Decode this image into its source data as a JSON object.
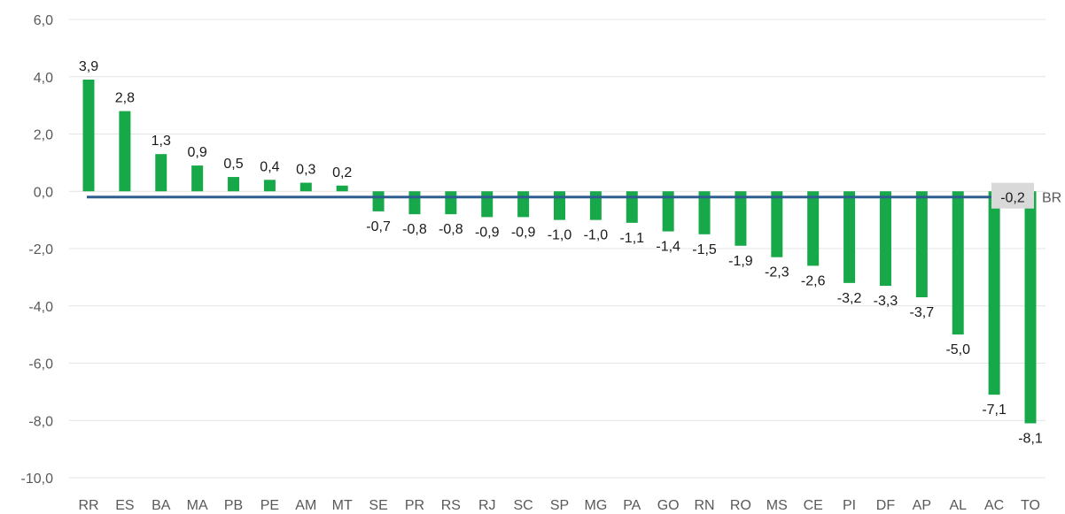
{
  "chart_data": {
    "type": "bar",
    "categories": [
      "RR",
      "ES",
      "BA",
      "MA",
      "PB",
      "PE",
      "AM",
      "MT",
      "SE",
      "PR",
      "RS",
      "RJ",
      "SC",
      "SP",
      "MG",
      "PA",
      "GO",
      "RN",
      "RO",
      "MS",
      "CE",
      "PI",
      "DF",
      "AP",
      "AL",
      "AC",
      "TO"
    ],
    "values": [
      3.9,
      2.8,
      1.3,
      0.9,
      0.5,
      0.4,
      0.3,
      0.2,
      -0.7,
      -0.8,
      -0.8,
      -0.9,
      -0.9,
      -1.0,
      -1.0,
      -1.1,
      -1.4,
      -1.5,
      -1.9,
      -2.3,
      -2.6,
      -3.2,
      -3.3,
      -3.7,
      -5.0,
      -7.1,
      -8.1
    ],
    "value_labels": [
      "3,9",
      "2,8",
      "1,3",
      "0,9",
      "0,5",
      "0,4",
      "0,3",
      "0,2",
      "-0,7",
      "-0,8",
      "-0,8",
      "-0,9",
      "-0,9",
      "-1,0",
      "-1,0",
      "-1,1",
      "-1,4",
      "-1,5",
      "-1,9",
      "-2,3",
      "-2,6",
      "-3,2",
      "-3,3",
      "-3,7",
      "-5,0",
      "-7,1",
      "-8,1"
    ],
    "ylim": [
      -10,
      6
    ],
    "yticks": [
      6,
      4,
      2,
      0,
      -2,
      -4,
      -6,
      -8,
      -10
    ],
    "ytick_labels": [
      "6,0",
      "4,0",
      "2,0",
      "0,0",
      "-2,0",
      "-4,0",
      "-6,0",
      "-8,0",
      "-10,0"
    ],
    "bar_color": "#17a84a",
    "grid": true,
    "reference_line": {
      "value": -0.2,
      "value_label": "-0,2",
      "name": "BR",
      "color": "#2e5f8f"
    }
  }
}
